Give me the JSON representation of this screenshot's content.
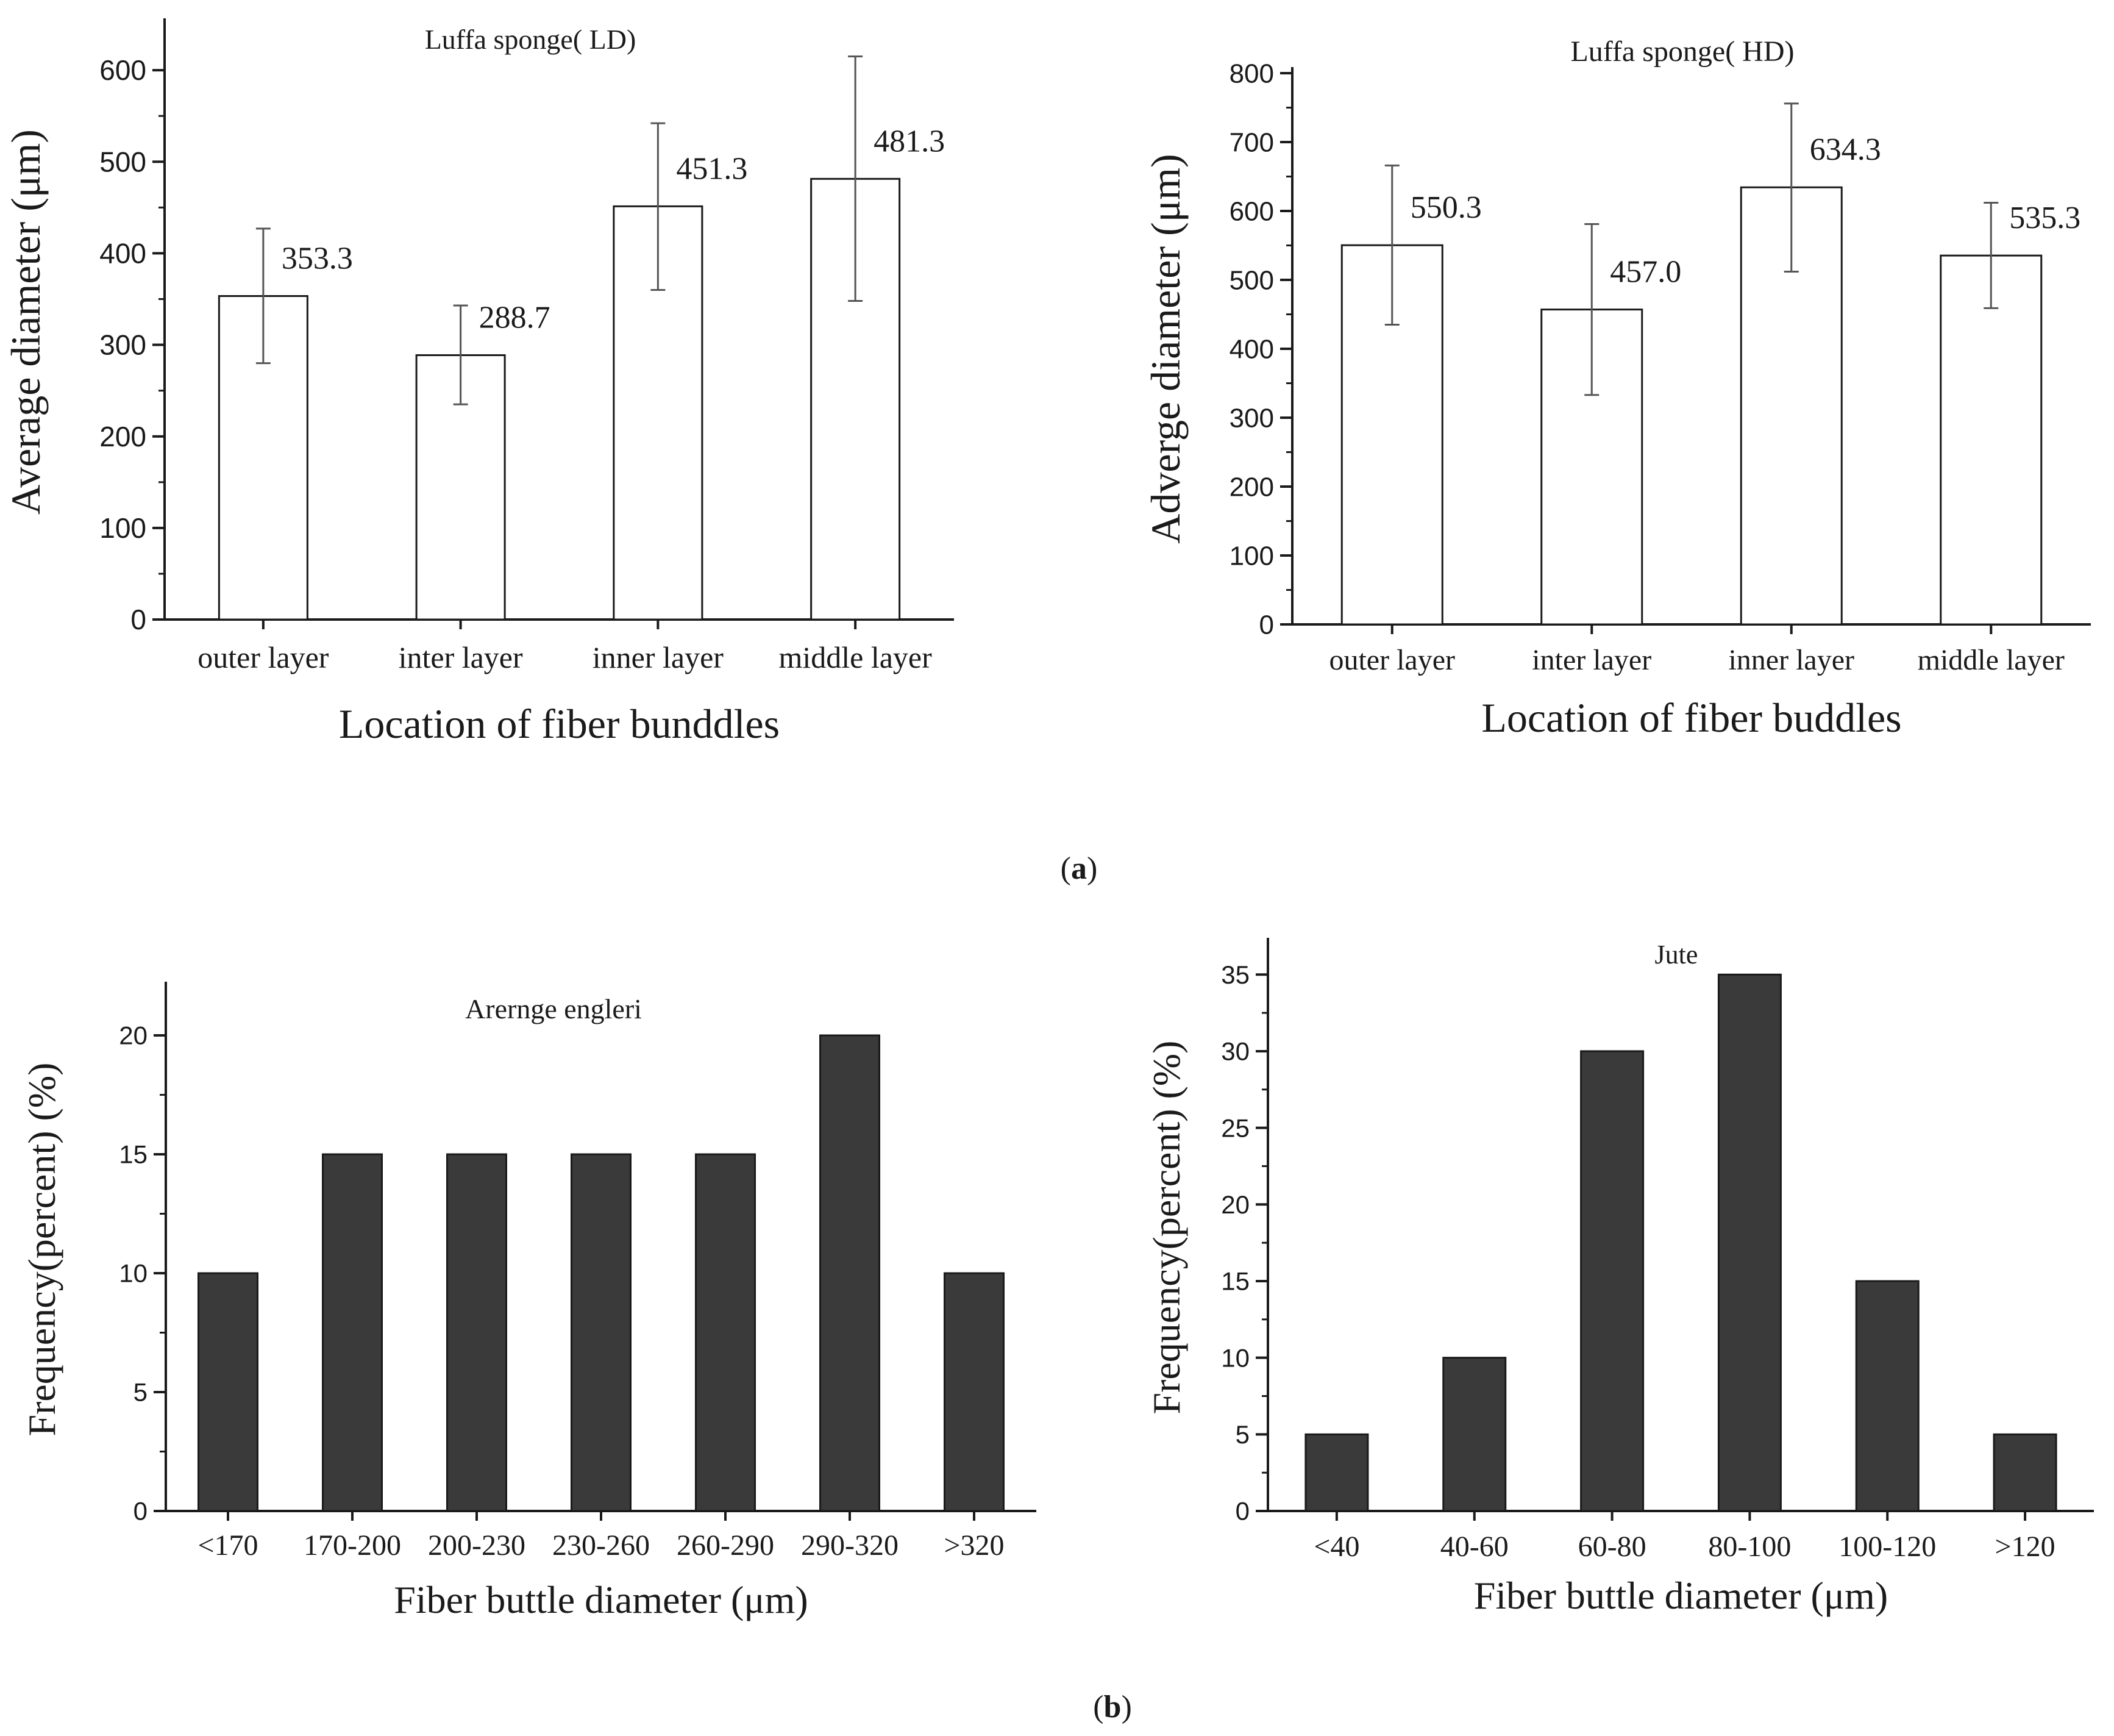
{
  "figure": {
    "panel_a_label": "a",
    "panel_b_label": "b"
  },
  "chart_data": [
    {
      "type": "bar",
      "title": "Luffa sponge( LD)",
      "xlabel": "Location of fiber bunddles",
      "ylabel": "Average diameter (μm)",
      "categories": [
        "outer layer",
        "inter layer",
        "inner layer",
        "middle layer"
      ],
      "values": [
        353.3,
        288.7,
        451.3,
        481.3
      ],
      "value_labels": [
        "353.3",
        "288.7",
        "451.3",
        "481.3"
      ],
      "error_low": [
        280,
        235,
        360,
        348
      ],
      "error_high": [
        427,
        343,
        542,
        615
      ],
      "ylim": [
        0,
        650
      ],
      "yticks": [
        0,
        100,
        200,
        300,
        400,
        500,
        600
      ],
      "bar_fill": "#ffffff"
    },
    {
      "type": "bar",
      "title": "Luffa sponge( HD)",
      "xlabel": "Location of fiber buddles",
      "ylabel": "Adverge diameter (μm)",
      "categories": [
        "outer layer",
        "inter layer",
        "inner layer",
        "middle layer"
      ],
      "values": [
        550.3,
        457.0,
        634.3,
        535.3
      ],
      "value_labels": [
        "550.3",
        "457.0",
        "634.3",
        "535.3"
      ],
      "error_low": [
        435,
        333,
        512,
        459
      ],
      "error_high": [
        666,
        581,
        756,
        612
      ],
      "ylim": [
        0,
        800
      ],
      "yticks": [
        0,
        100,
        200,
        300,
        400,
        500,
        600,
        700,
        800
      ],
      "bar_fill": "#ffffff"
    },
    {
      "type": "bar",
      "title": "Arernge engleri",
      "xlabel": "Fiber buttle diameter (μm)",
      "ylabel": "Frequency(percent) (%)",
      "categories": [
        "<170",
        "170-200",
        "200-230",
        "230-260",
        "260-290",
        "290-320",
        ">320"
      ],
      "values": [
        10,
        15,
        15,
        15,
        15,
        20,
        10
      ],
      "ylim": [
        0,
        22
      ],
      "yticks": [
        0,
        5,
        10,
        15,
        20
      ],
      "bar_fill": "#3a3a3a"
    },
    {
      "type": "bar",
      "title": "Jute",
      "xlabel": "Fiber buttle diameter (μm)",
      "ylabel": "Frequency(percent) (%)",
      "categories": [
        "<40",
        "40-60",
        "60-80",
        "80-100",
        "100-120",
        ">120"
      ],
      "values": [
        5,
        10,
        30,
        35,
        15,
        5
      ],
      "ylim": [
        0,
        37
      ],
      "yticks": [
        0,
        5,
        10,
        15,
        20,
        25,
        30,
        35
      ],
      "bar_fill": "#3a3a3a"
    }
  ]
}
